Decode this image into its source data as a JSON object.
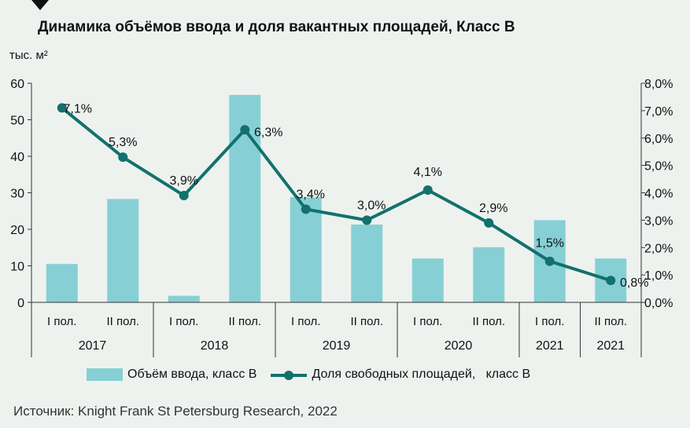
{
  "title": "Динамика объёмов ввода и доля вакантных площадей, Класс В",
  "unit_label": "тыс. м²",
  "source": "Источник: Knight Frank St Petersburg Research, 2022",
  "legend": {
    "bars": "Объём ввода, класс В",
    "line": "Доля свободных площадей,   класс В"
  },
  "colors": {
    "bar": "#86d0d5",
    "line": "#12716c",
    "axis": "#333333"
  },
  "chart_data": {
    "type": "bar+line",
    "title": "Динамика объёмов ввода и доля вакантных площадей, Класс В",
    "categories": [
      "I пол.",
      "II пол.",
      "I пол.",
      "II пол.",
      "I пол.",
      "II пол.",
      "I пол.",
      "II пол.",
      "I пол.",
      "II пол."
    ],
    "years": [
      "2017",
      "2017",
      "2018",
      "2018",
      "2019",
      "2019",
      "2020",
      "2020",
      "2021",
      "2021"
    ],
    "year_groups": [
      {
        "label": "2017",
        "span": 2
      },
      {
        "label": "2018",
        "span": 2
      },
      {
        "label": "2019",
        "span": 2
      },
      {
        "label": "2020",
        "span": 2
      },
      {
        "label": "2021",
        "span": 1
      },
      {
        "label": "2021",
        "span": 1
      }
    ],
    "series": [
      {
        "name": "Объём ввода, класс В",
        "type": "bar",
        "axis": "left",
        "values": [
          10.5,
          28.3,
          1.8,
          56.8,
          28.8,
          21.3,
          12.0,
          15.1,
          22.5,
          12.0
        ]
      },
      {
        "name": "Доля свободных площадей,   класс В",
        "type": "line",
        "axis": "right",
        "values": [
          7.1,
          5.3,
          3.9,
          6.3,
          3.4,
          3.0,
          4.1,
          2.9,
          1.5,
          0.8
        ],
        "labels": [
          "7,1%",
          "5,3%",
          "3,9%",
          "6,3%",
          "3,4%",
          "3,0%",
          "4,1%",
          "2,9%",
          "1,5%",
          "0,8%"
        ]
      }
    ],
    "ylim_left": [
      0,
      60
    ],
    "yticks_left": [
      "0",
      "10",
      "20",
      "30",
      "40",
      "50",
      "60"
    ],
    "ylim_right": [
      0,
      8
    ],
    "yticks_right": [
      "0,0%",
      "1,0%",
      "2,0%",
      "3,0%",
      "4,0%",
      "5,0%",
      "6,0%",
      "7,0%",
      "8,0%"
    ],
    "ylabel": "тыс. м²",
    "grid": false,
    "legend_position": "bottom"
  }
}
